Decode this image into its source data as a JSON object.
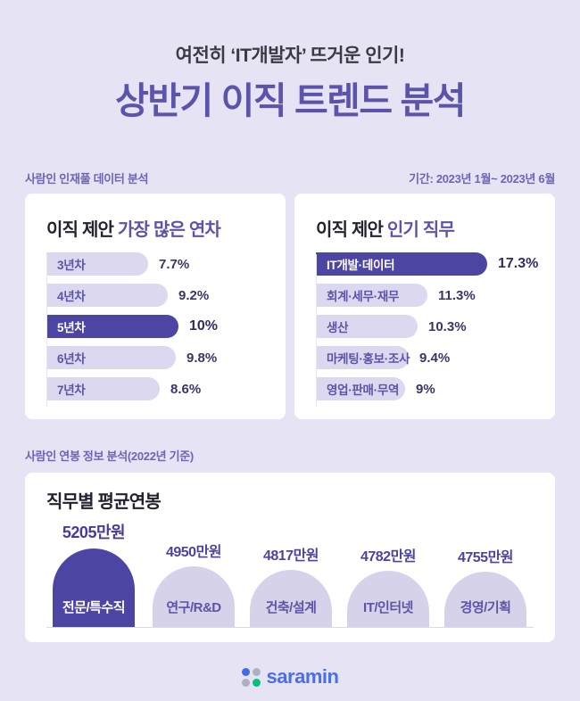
{
  "header": {
    "subtitle": "여전히 ‘IT개발자’ 뜨거운 인기!",
    "title": "상반기 이직 트렌드 분석"
  },
  "meta": {
    "source": "사람인 인재풀 데이터 분석",
    "period": "기간: 2023년 1월~ 2023년 6월"
  },
  "salary_section": {
    "label": "사람인 연봉 정보 분석(2022년 기준)"
  },
  "chart_data": [
    {
      "type": "bar",
      "title": "이직 제안 가장 많은 연차",
      "title_prefix": "이직 제안 ",
      "title_accent": "가장 많은 연차",
      "orientation": "horizontal",
      "categories": [
        "3년차",
        "4년차",
        "5년차",
        "6년차",
        "7년차"
      ],
      "values": [
        7.7,
        9.2,
        10,
        9.8,
        8.6
      ],
      "value_labels": [
        "7.7%",
        "9.2%",
        "10%",
        "9.8%",
        "8.6%"
      ],
      "unit": "%",
      "highlight_index": 2,
      "xlim": [
        0,
        18
      ],
      "grid": false,
      "legend": "none"
    },
    {
      "type": "bar",
      "title": "이직 제안 인기 직무",
      "title_prefix": "이직 제안 ",
      "title_accent": "인기 직무",
      "orientation": "horizontal",
      "categories": [
        "IT개발·데이터",
        "회계·세무·재무",
        "생산",
        "마케팅·홍보·조사",
        "영업·판매·무역"
      ],
      "values": [
        17.3,
        11.3,
        10.3,
        9.4,
        9
      ],
      "value_labels": [
        "17.3%",
        "11.3%",
        "10.3%",
        "9.4%",
        "9%"
      ],
      "unit": "%",
      "highlight_index": 0,
      "xlim": [
        0,
        22
      ],
      "grid": false,
      "legend": "none"
    },
    {
      "type": "bar",
      "title": "직무별 평균연봉",
      "orientation": "vertical-arch",
      "categories": [
        "전문/특수직",
        "연구/R&D",
        "건축/설계",
        "IT/인터넷",
        "경영/기획"
      ],
      "values": [
        5205,
        4950,
        4817,
        4782,
        4755
      ],
      "value_labels": [
        "5205만원",
        "4950만원",
        "4817만원",
        "4782만원",
        "4755만원"
      ],
      "unit": "만원",
      "highlight_index": 0,
      "grid": false,
      "legend": "none"
    }
  ],
  "footer": {
    "logo_text": "saramin",
    "icon": "saramin-dots-icon"
  },
  "colors": {
    "bg": "#e6e3f4",
    "card": "#ffffff",
    "accent": "#5b54ab",
    "subtitle-ink": "#3b3a43",
    "ink": "#222230",
    "meta": "#6c65b8",
    "bar-light": "#dbd8ef",
    "bar-dark": "#4d45a4",
    "arch-light": "#d5d2e9",
    "label": "#5c54a8",
    "value": "#3b3566",
    "value-hl": "#322d5f",
    "arch-value": "#4b44a2",
    "arch-value-hl": "#453b9e",
    "line": "#e8e6f3",
    "baseline": "#dcdaea",
    "logo-blue": "#4a6fe8",
    "logo-dot-blue": "#4169e8",
    "logo-gray": "#a9b1c3",
    "logo-green": "#00c377"
  }
}
